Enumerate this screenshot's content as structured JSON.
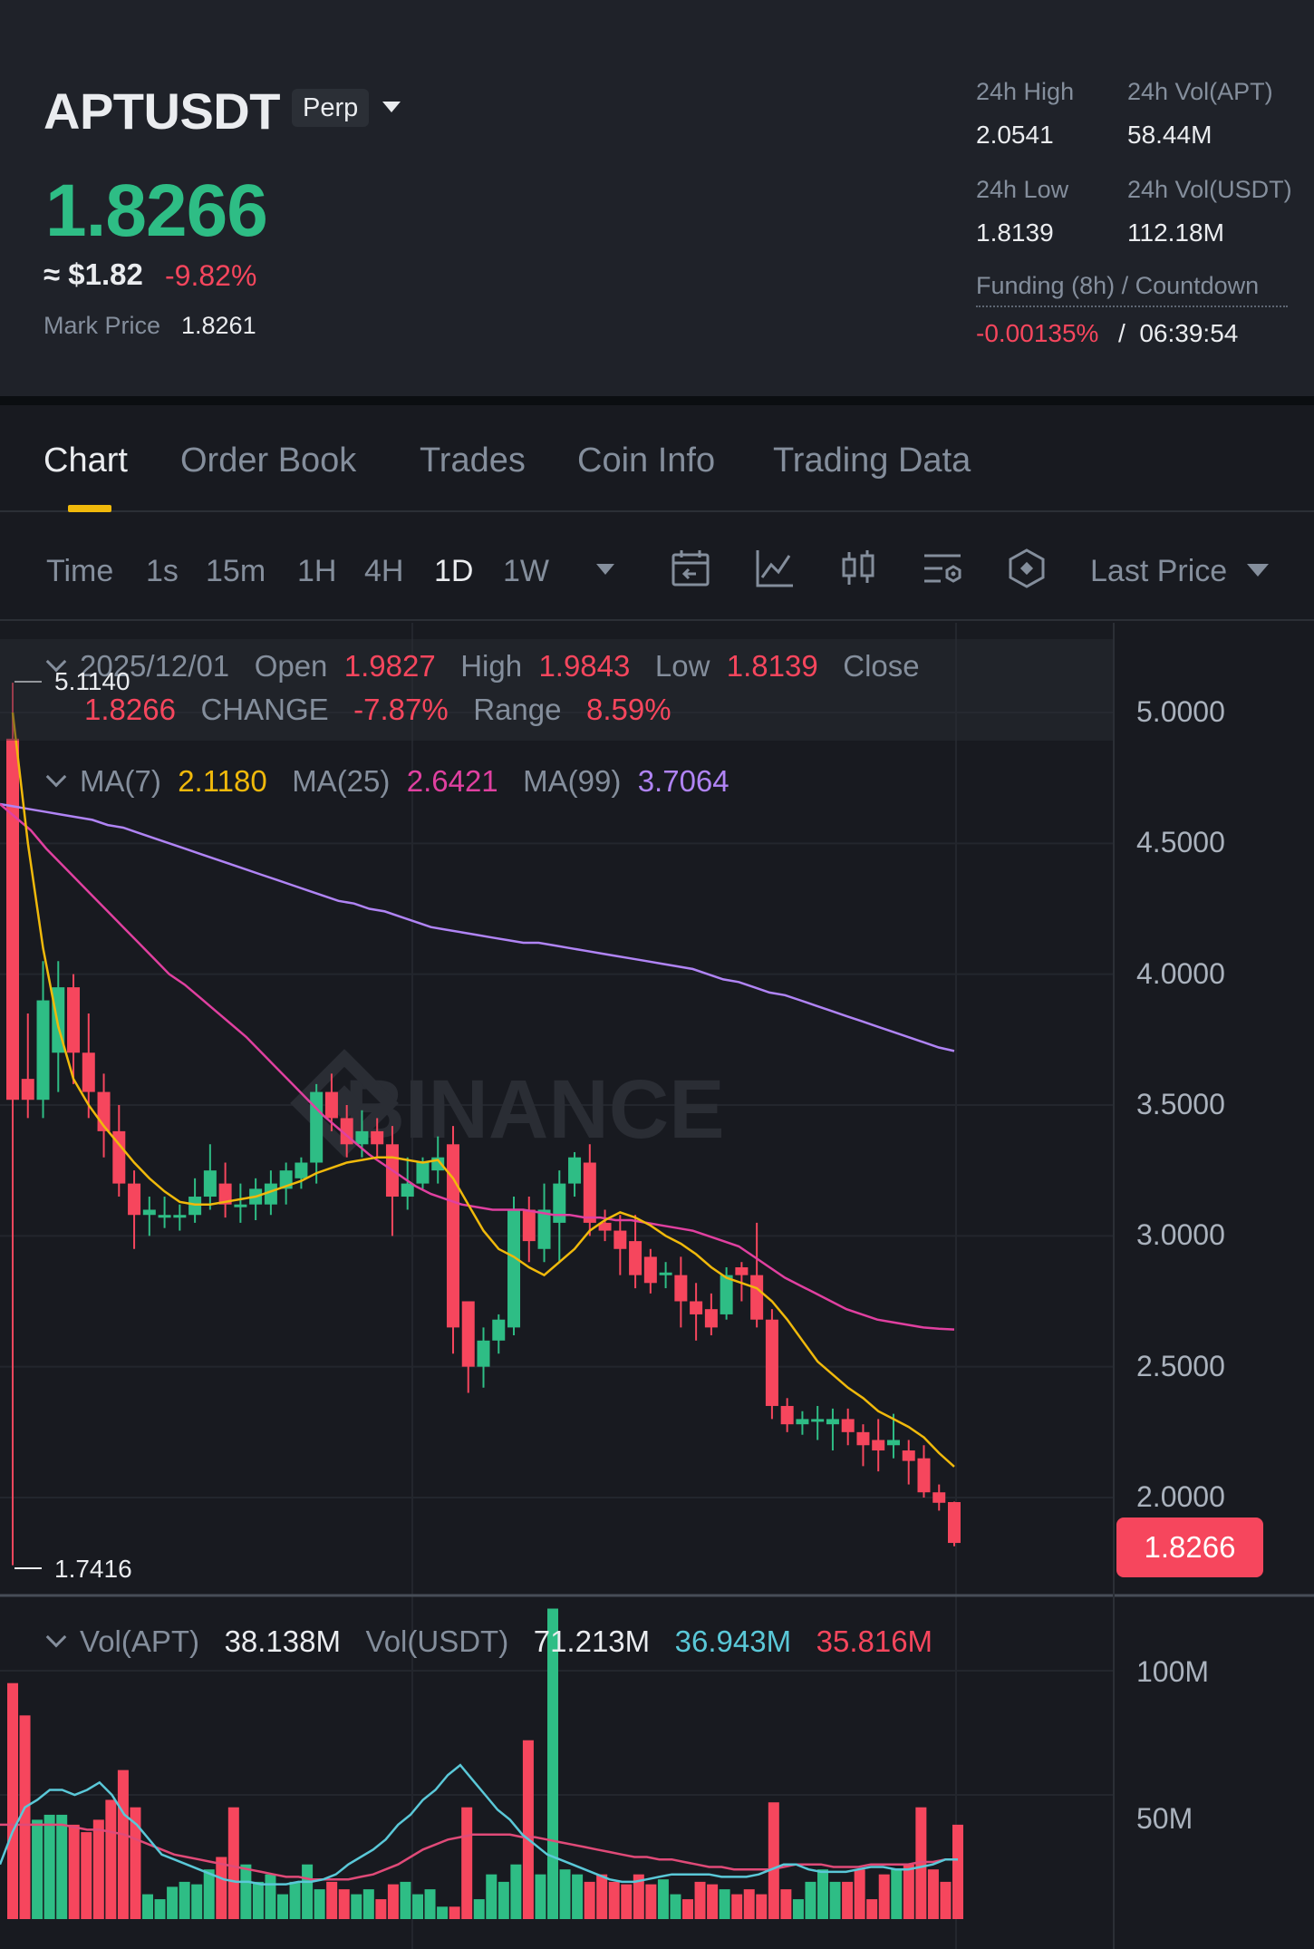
{
  "header": {
    "symbol": "APTUSDT",
    "contract_type": "Perp",
    "last_price": "1.8266",
    "approx_usd": "≈ $1.82",
    "change_pct": "-9.82%",
    "mark_price_label": "Mark Price",
    "mark_price": "1.8261",
    "stats": {
      "high_label": "24h High",
      "high": "2.0541",
      "vol_apt_label": "24h Vol(APT)",
      "vol_apt": "58.44M",
      "low_label": "24h Low",
      "low": "1.8139",
      "vol_usdt_label": "24h Vol(USDT)",
      "vol_usdt": "112.18M",
      "funding_label": "Funding (8h) / Countdown",
      "funding_rate": "-0.00135%",
      "funding_sep": "/",
      "countdown": "06:39:54"
    }
  },
  "tabs": [
    {
      "label": "Chart",
      "active": true
    },
    {
      "label": "Order Book"
    },
    {
      "label": "Trades"
    },
    {
      "label": "Coin Info"
    },
    {
      "label": "Trading Data"
    }
  ],
  "toolbar": {
    "timeframes": [
      "Time",
      "1s",
      "15m",
      "1H",
      "4H",
      "1D",
      "1W"
    ],
    "active_timeframe": "1D",
    "price_type": "Last Price",
    "tool_icons": [
      "calendar-icon",
      "indicator-icon",
      "candle-type-icon",
      "settings-icon",
      "hexagon-icon"
    ]
  },
  "ohlc": {
    "date": "2025/12/01",
    "open_label": "Open",
    "open": "1.9827",
    "high_label": "High",
    "high": "1.9843",
    "low_label": "Low",
    "low": "1.8139",
    "close_label": "Close",
    "close": "1.8266",
    "change_label": "CHANGE",
    "change": "-7.87%",
    "range_label": "Range",
    "range": "8.59%"
  },
  "ma_legend": {
    "ma7_label": "MA(7)",
    "ma7": "2.1180",
    "ma25_label": "MA(25)",
    "ma25": "2.6421",
    "ma99_label": "MA(99)",
    "ma99": "3.7064"
  },
  "vol_legend": {
    "vol_apt_label": "Vol(APT)",
    "vol_apt": "38.138M",
    "vol_usdt_label": "Vol(USDT)",
    "vol_usdt": "71.213M",
    "ma5": "36.943M",
    "ma10": "35.816M"
  },
  "price_axis": [
    "5.0000",
    "4.5000",
    "4.0000",
    "3.5000",
    "3.0000",
    "2.5000",
    "2.0000"
  ],
  "vol_axis": [
    "100M",
    "50M"
  ],
  "current_price_tag": "1.8266",
  "max_marker": "5.1140",
  "min_marker": "1.7416",
  "watermark": "BINANCE",
  "colors": {
    "up": "#2ebd85",
    "down": "#f6465d",
    "ma7": "#f0b90b",
    "ma25": "#e040a0",
    "ma99": "#b084f5",
    "vol_ma5": "#5ac8d8",
    "vol_ma10": "#e04a78"
  },
  "chart_data": {
    "type": "candlestick",
    "price_range": [
      1.5,
      5.25
    ],
    "candles": [
      {
        "o": 4.9,
        "h": 5.114,
        "l": 1.7416,
        "c": 3.52
      },
      {
        "o": 3.6,
        "h": 3.85,
        "l": 3.45,
        "c": 3.52
      },
      {
        "o": 3.52,
        "h": 4.05,
        "l": 3.45,
        "c": 3.9
      },
      {
        "o": 3.7,
        "h": 4.05,
        "l": 3.55,
        "c": 3.95
      },
      {
        "o": 3.95,
        "h": 4.0,
        "l": 3.58,
        "c": 3.7
      },
      {
        "o": 3.7,
        "h": 3.85,
        "l": 3.45,
        "c": 3.55
      },
      {
        "o": 3.55,
        "h": 3.62,
        "l": 3.3,
        "c": 3.4
      },
      {
        "o": 3.4,
        "h": 3.5,
        "l": 3.15,
        "c": 3.2
      },
      {
        "o": 3.2,
        "h": 3.25,
        "l": 2.95,
        "c": 3.08
      },
      {
        "o": 3.08,
        "h": 3.15,
        "l": 3.0,
        "c": 3.1
      },
      {
        "o": 3.08,
        "h": 3.15,
        "l": 3.03,
        "c": 3.08
      },
      {
        "o": 3.08,
        "h": 3.12,
        "l": 3.02,
        "c": 3.08
      },
      {
        "o": 3.08,
        "h": 3.22,
        "l": 3.05,
        "c": 3.15
      },
      {
        "o": 3.15,
        "h": 3.35,
        "l": 3.1,
        "c": 3.25
      },
      {
        "o": 3.2,
        "h": 3.28,
        "l": 3.07,
        "c": 3.12
      },
      {
        "o": 3.12,
        "h": 3.2,
        "l": 3.05,
        "c": 3.12
      },
      {
        "o": 3.12,
        "h": 3.22,
        "l": 3.06,
        "c": 3.18
      },
      {
        "o": 3.12,
        "h": 3.25,
        "l": 3.08,
        "c": 3.2
      },
      {
        "o": 3.18,
        "h": 3.28,
        "l": 3.12,
        "c": 3.25
      },
      {
        "o": 3.22,
        "h": 3.3,
        "l": 3.18,
        "c": 3.28
      },
      {
        "o": 3.28,
        "h": 3.58,
        "l": 3.2,
        "c": 3.55
      },
      {
        "o": 3.55,
        "h": 3.62,
        "l": 3.4,
        "c": 3.45
      },
      {
        "o": 3.45,
        "h": 3.5,
        "l": 3.3,
        "c": 3.35
      },
      {
        "o": 3.35,
        "h": 3.48,
        "l": 3.3,
        "c": 3.4
      },
      {
        "o": 3.4,
        "h": 3.45,
        "l": 3.3,
        "c": 3.35
      },
      {
        "o": 3.35,
        "h": 3.42,
        "l": 3.0,
        "c": 3.15
      },
      {
        "o": 3.15,
        "h": 3.3,
        "l": 3.1,
        "c": 3.2
      },
      {
        "o": 3.2,
        "h": 3.3,
        "l": 3.18,
        "c": 3.28
      },
      {
        "o": 3.25,
        "h": 3.38,
        "l": 3.2,
        "c": 3.3
      },
      {
        "o": 3.35,
        "h": 3.42,
        "l": 2.55,
        "c": 2.65
      },
      {
        "o": 2.75,
        "h": 2.75,
        "l": 2.4,
        "c": 2.5
      },
      {
        "o": 2.5,
        "h": 2.65,
        "l": 2.42,
        "c": 2.6
      },
      {
        "o": 2.6,
        "h": 2.7,
        "l": 2.55,
        "c": 2.68
      },
      {
        "o": 2.65,
        "h": 3.15,
        "l": 2.62,
        "c": 3.1
      },
      {
        "o": 3.1,
        "h": 3.15,
        "l": 2.9,
        "c": 2.98
      },
      {
        "o": 2.95,
        "h": 3.2,
        "l": 2.9,
        "c": 3.1
      },
      {
        "o": 3.05,
        "h": 3.25,
        "l": 2.9,
        "c": 3.2
      },
      {
        "o": 3.2,
        "h": 3.32,
        "l": 3.15,
        "c": 3.3
      },
      {
        "o": 3.28,
        "h": 3.35,
        "l": 3.0,
        "c": 3.05
      },
      {
        "o": 3.05,
        "h": 3.1,
        "l": 2.98,
        "c": 3.02
      },
      {
        "o": 3.02,
        "h": 3.08,
        "l": 2.85,
        "c": 2.95
      },
      {
        "o": 2.98,
        "h": 3.08,
        "l": 2.8,
        "c": 2.85
      },
      {
        "o": 2.92,
        "h": 2.95,
        "l": 2.78,
        "c": 2.82
      },
      {
        "o": 2.85,
        "h": 2.9,
        "l": 2.8,
        "c": 2.86
      },
      {
        "o": 2.85,
        "h": 2.92,
        "l": 2.65,
        "c": 2.75
      },
      {
        "o": 2.75,
        "h": 2.82,
        "l": 2.6,
        "c": 2.7
      },
      {
        "o": 2.72,
        "h": 2.78,
        "l": 2.62,
        "c": 2.65
      },
      {
        "o": 2.7,
        "h": 2.88,
        "l": 2.68,
        "c": 2.85
      },
      {
        "o": 2.88,
        "h": 2.9,
        "l": 2.75,
        "c": 2.85
      },
      {
        "o": 2.85,
        "h": 3.05,
        "l": 2.65,
        "c": 2.68
      },
      {
        "o": 2.68,
        "h": 2.72,
        "l": 2.3,
        "c": 2.35
      },
      {
        "o": 2.35,
        "h": 2.38,
        "l": 2.25,
        "c": 2.28
      },
      {
        "o": 2.28,
        "h": 2.33,
        "l": 2.24,
        "c": 2.3
      },
      {
        "o": 2.3,
        "h": 2.35,
        "l": 2.22,
        "c": 2.3
      },
      {
        "o": 2.28,
        "h": 2.34,
        "l": 2.18,
        "c": 2.3
      },
      {
        "o": 2.3,
        "h": 2.34,
        "l": 2.2,
        "c": 2.25
      },
      {
        "o": 2.25,
        "h": 2.28,
        "l": 2.12,
        "c": 2.2
      },
      {
        "o": 2.22,
        "h": 2.3,
        "l": 2.1,
        "c": 2.18
      },
      {
        "o": 2.2,
        "h": 2.32,
        "l": 2.15,
        "c": 2.22
      },
      {
        "o": 2.18,
        "h": 2.22,
        "l": 2.05,
        "c": 2.14
      },
      {
        "o": 2.15,
        "h": 2.2,
        "l": 2.0,
        "c": 2.02
      },
      {
        "o": 2.02,
        "h": 2.05,
        "l": 1.95,
        "c": 1.98
      },
      {
        "o": 1.9827,
        "h": 1.9843,
        "l": 1.8139,
        "c": 1.8266
      }
    ],
    "ma7": [
      5.0,
      4.5,
      4.1,
      3.8,
      3.6,
      3.5,
      3.42,
      3.35,
      3.28,
      3.22,
      3.17,
      3.13,
      3.12,
      3.12,
      3.13,
      3.14,
      3.15,
      3.17,
      3.19,
      3.21,
      3.24,
      3.26,
      3.28,
      3.29,
      3.3,
      3.3,
      3.29,
      3.28,
      3.29,
      3.22,
      3.12,
      3.02,
      2.95,
      2.92,
      2.88,
      2.85,
      2.9,
      2.95,
      3.02,
      3.06,
      3.09,
      3.07,
      3.04,
      3.0,
      2.97,
      2.93,
      2.88,
      2.84,
      2.82,
      2.8,
      2.75,
      2.68,
      2.6,
      2.52,
      2.47,
      2.42,
      2.38,
      2.33,
      2.3,
      2.27,
      2.23,
      2.17,
      2.118
    ],
    "ma25": [
      4.65,
      4.6,
      4.55,
      4.48,
      4.42,
      4.36,
      4.3,
      4.24,
      4.18,
      4.12,
      4.06,
      4.0,
      3.96,
      3.91,
      3.86,
      3.81,
      3.76,
      3.7,
      3.64,
      3.58,
      3.52,
      3.46,
      3.41,
      3.36,
      3.31,
      3.27,
      3.23,
      3.19,
      3.16,
      3.14,
      3.12,
      3.11,
      3.1,
      3.1,
      3.1,
      3.09,
      3.08,
      3.08,
      3.07,
      3.07,
      3.06,
      3.06,
      3.05,
      3.04,
      3.03,
      3.02,
      3.0,
      2.98,
      2.96,
      2.92,
      2.88,
      2.84,
      2.81,
      2.78,
      2.75,
      2.72,
      2.7,
      2.68,
      2.67,
      2.66,
      2.65,
      2.645,
      2.6421
    ],
    "ma99": [
      4.65,
      4.64,
      4.63,
      4.62,
      4.61,
      4.6,
      4.59,
      4.57,
      4.56,
      4.54,
      4.52,
      4.5,
      4.48,
      4.46,
      4.44,
      4.42,
      4.4,
      4.38,
      4.36,
      4.34,
      4.32,
      4.3,
      4.28,
      4.27,
      4.25,
      4.24,
      4.22,
      4.2,
      4.18,
      4.17,
      4.16,
      4.15,
      4.14,
      4.13,
      4.12,
      4.12,
      4.11,
      4.1,
      4.09,
      4.08,
      4.07,
      4.06,
      4.05,
      4.04,
      4.03,
      4.02,
      4.0,
      3.98,
      3.97,
      3.95,
      3.93,
      3.92,
      3.9,
      3.88,
      3.86,
      3.84,
      3.82,
      3.8,
      3.78,
      3.76,
      3.74,
      3.72,
      3.7064
    ],
    "volume_range": [
      0,
      125
    ],
    "volumes": [
      95,
      82,
      40,
      42,
      42,
      38,
      35,
      40,
      48,
      60,
      45,
      10,
      8,
      13,
      15,
      14,
      20,
      25,
      45,
      22,
      15,
      18,
      10,
      15,
      22,
      12,
      15,
      12,
      10,
      12,
      8,
      14,
      15,
      10,
      12,
      5,
      5,
      45,
      8,
      18,
      15,
      22,
      72,
      18,
      125,
      20,
      18,
      15,
      18,
      15,
      14,
      18,
      14,
      16,
      10,
      8,
      15,
      14,
      12,
      10,
      12,
      10,
      47,
      12,
      8,
      15,
      20,
      15,
      15,
      20,
      8,
      18,
      20,
      22,
      45,
      20,
      15,
      38
    ],
    "vol_ma5": [
      22,
      35,
      45,
      48,
      52,
      52,
      50,
      52,
      55,
      50,
      42,
      38,
      32,
      26,
      24,
      22,
      20,
      18,
      16,
      15,
      15,
      14,
      14,
      14,
      15,
      15,
      16,
      18,
      22,
      25,
      28,
      32,
      38,
      42,
      48,
      52,
      58,
      62,
      56,
      50,
      44,
      40,
      34,
      30,
      26,
      24,
      22,
      20,
      18,
      16,
      15,
      15,
      16,
      17,
      18,
      18,
      18,
      18,
      17,
      17,
      17,
      18,
      20,
      22,
      22,
      20,
      19,
      19,
      19,
      20,
      21,
      21,
      20,
      20,
      21,
      22,
      24,
      24
    ],
    "vol_ma10": [
      38,
      38,
      38,
      38,
      38,
      38,
      37,
      36,
      36,
      35,
      34,
      32,
      30,
      28,
      26,
      25,
      24,
      23,
      22,
      21,
      20,
      19,
      18,
      17,
      17,
      16,
      16,
      16,
      16,
      17,
      18,
      20,
      22,
      25,
      28,
      30,
      32,
      33,
      34,
      34,
      34,
      34,
      33,
      33,
      32,
      31,
      30,
      29,
      28,
      27,
      26,
      25,
      25,
      24,
      24,
      23,
      22,
      21,
      21,
      20,
      20,
      20,
      20,
      21,
      22,
      22,
      22,
      21,
      21,
      21,
      22,
      22,
      22,
      22,
      23,
      23,
      24,
      24
    ]
  }
}
